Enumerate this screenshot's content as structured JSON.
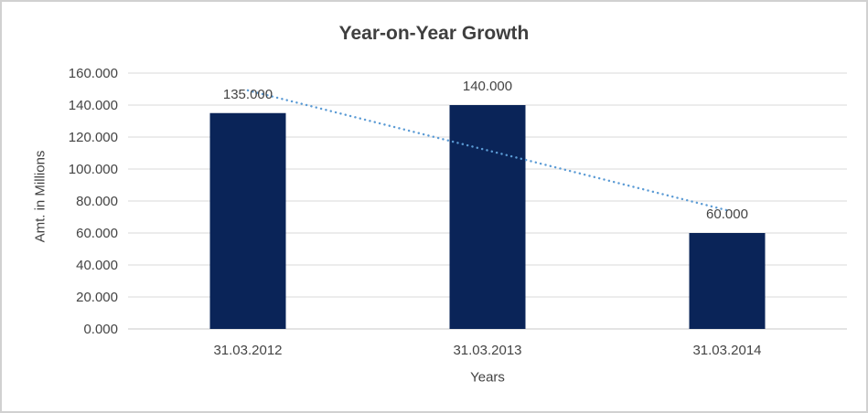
{
  "window": {
    "background_color": "#FFFFFF",
    "border_color": "#D1D1D1"
  },
  "chart_data": {
    "type": "bar",
    "title": "Year-on-Year Growth",
    "xlabel": "Years",
    "ylabel": "Amt. in Millions",
    "categories": [
      "31.03.2012",
      "31.03.2013",
      "31.03.2014"
    ],
    "values": [
      135,
      140,
      60
    ],
    "data_labels": [
      "135.000",
      "140.000",
      "60.000"
    ],
    "ylim": [
      0,
      160
    ],
    "y_tick_step": 20,
    "y_tick_labels": [
      "0.000",
      "20.000",
      "40.000",
      "60.000",
      "80.000",
      "100.000",
      "120.000",
      "140.000",
      "160.000"
    ],
    "grid": true,
    "legend": "none",
    "bar_color": "#0A2458",
    "gridline_color": "#D9D9D9",
    "axis_line_color": "#C9C9C9",
    "label_color": "#444444",
    "title_color": "#3F3F3F",
    "trendline": {
      "type": "linear",
      "style": "dotted",
      "color": "#5B9BD5",
      "y_at_first": 149.2,
      "y_at_last": 74.2
    }
  }
}
